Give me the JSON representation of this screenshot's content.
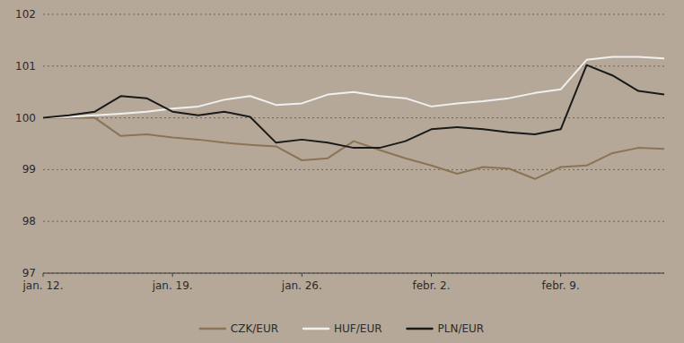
{
  "chart_data": {
    "type": "line",
    "categories": [
      "jan. 12.",
      null,
      null,
      null,
      null,
      "jan. 19.",
      null,
      null,
      null,
      null,
      "jan. 26.",
      null,
      null,
      null,
      null,
      "febr. 2.",
      null,
      null,
      null,
      null,
      "febr. 9.",
      null,
      null,
      null,
      null
    ],
    "series": [
      {
        "name": "CZK/EUR",
        "color": "#8b7355",
        "values": [
          100.0,
          100.0,
          100.0,
          99.65,
          99.68,
          99.62,
          99.58,
          99.52,
          99.48,
          99.45,
          99.18,
          99.22,
          99.55,
          99.38,
          99.22,
          99.08,
          98.92,
          99.05,
          99.02,
          98.82,
          99.05,
          99.08,
          99.32,
          99.42,
          99.4
        ]
      },
      {
        "name": "HUF/EUR",
        "color": "#f0f0f0",
        "values": [
          100.0,
          100.02,
          100.05,
          100.08,
          100.12,
          100.18,
          100.22,
          100.35,
          100.42,
          100.25,
          100.28,
          100.45,
          100.5,
          100.42,
          100.38,
          100.22,
          100.28,
          100.32,
          100.38,
          100.48,
          100.55,
          101.12,
          101.18,
          101.18,
          101.15
        ]
      },
      {
        "name": "PLN/EUR",
        "color": "#1a1a1a",
        "values": [
          100.0,
          100.05,
          100.12,
          100.42,
          100.38,
          100.12,
          100.05,
          100.12,
          100.02,
          99.52,
          99.58,
          99.52,
          99.42,
          99.42,
          99.55,
          99.78,
          99.82,
          99.78,
          99.72,
          99.68,
          99.78,
          101.02,
          100.82,
          100.52,
          100.45
        ]
      }
    ],
    "ylim": [
      97,
      102
    ],
    "yticks": [
      97,
      98,
      99,
      100,
      101,
      102
    ],
    "grid": true,
    "legend": "bottom"
  }
}
